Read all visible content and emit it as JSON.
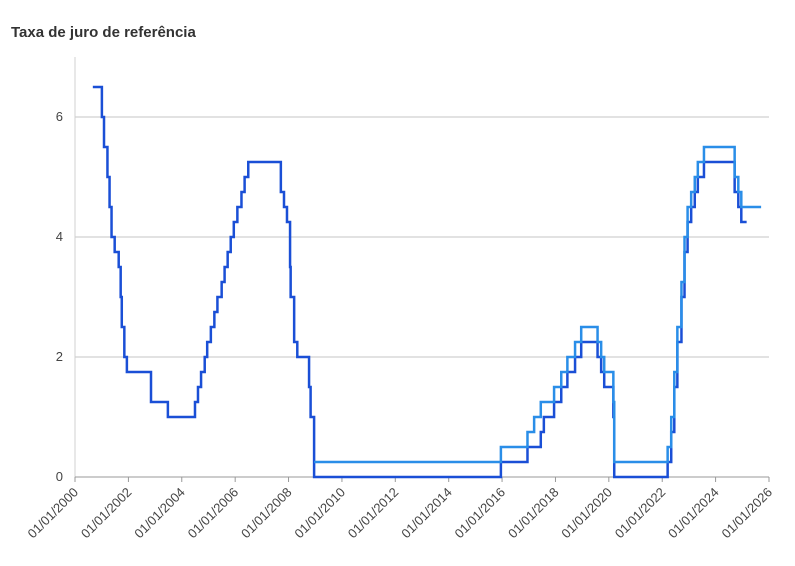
{
  "chart_data": {
    "type": "line",
    "title": "Taxa de juro de referência",
    "xlabel": "",
    "ylabel": "",
    "xlim": [
      "2000-01-01",
      "2026-01-01"
    ],
    "ylim": [
      0,
      7
    ],
    "x_ticks": [
      "01/01/2000",
      "01/01/2002",
      "01/01/2004",
      "01/01/2006",
      "01/01/2008",
      "01/01/2010",
      "01/01/2012",
      "01/01/2014",
      "01/01/2016",
      "01/01/2018",
      "01/01/2020",
      "01/01/2022",
      "01/01/2024",
      "01/01/2026"
    ],
    "y_ticks": [
      0,
      2,
      4,
      6
    ],
    "grid": true,
    "legend": "none",
    "colors": [
      "#1a4fd6",
      "#2a8ee8"
    ],
    "series": [
      {
        "x": [
          "2000-09-01",
          "2001-01-03",
          "2001-02-01",
          "2001-03-20",
          "2001-04-18",
          "2001-05-15",
          "2001-06-27",
          "2001-08-21",
          "2001-09-17",
          "2001-10-02",
          "2001-11-06",
          "2001-12-11",
          "2002-11-06",
          "2003-06-25",
          "2004-06-30",
          "2004-08-10",
          "2004-09-21",
          "2004-11-10",
          "2004-12-14",
          "2005-02-02",
          "2005-03-22",
          "2005-05-03",
          "2005-06-30",
          "2005-08-09",
          "2005-09-20",
          "2005-11-01",
          "2005-12-13",
          "2006-01-31",
          "2006-03-28",
          "2006-05-10",
          "2006-06-29",
          "2007-09-18",
          "2007-10-31",
          "2007-12-11",
          "2008-01-22",
          "2008-01-30",
          "2008-03-18",
          "2008-04-30",
          "2008-10-08",
          "2008-10-29",
          "2008-12-16",
          "2015-12-16",
          "2016-12-14",
          "2017-06-14",
          "2017-07-26",
          "2017-09-20",
          "2017-12-13",
          "2018-03-21",
          "2018-06-13",
          "2018-09-26",
          "2018-12-19",
          "2019-07-31",
          "2019-09-18",
          "2019-10-30",
          "2020-03-03",
          "2020-03-15",
          "2022-03-16",
          "2022-05-04",
          "2022-06-15",
          "2022-07-27",
          "2022-09-21",
          "2022-11-02",
          "2022-12-14",
          "2023-02-01",
          "2023-03-22",
          "2023-05-03",
          "2023-07-26",
          "2024-09-18",
          "2024-11-07",
          "2024-12-18",
          "2025-03-01"
        ],
        "values": [
          6.5,
          6.0,
          5.5,
          5.0,
          4.5,
          4.0,
          3.75,
          3.5,
          3.0,
          2.5,
          2.0,
          1.75,
          1.25,
          1.0,
          1.25,
          1.5,
          1.75,
          2.0,
          2.25,
          2.5,
          2.75,
          3.0,
          3.25,
          3.5,
          3.75,
          4.0,
          4.25,
          4.5,
          4.75,
          5.0,
          5.25,
          4.75,
          4.5,
          4.25,
          3.5,
          3.0,
          2.25,
          2.0,
          1.5,
          1.0,
          0.0,
          0.25,
          0.5,
          0.75,
          1.0,
          1.0,
          1.25,
          1.5,
          1.75,
          2.0,
          2.25,
          2.0,
          1.75,
          1.5,
          1.0,
          0.0,
          0.25,
          0.75,
          1.5,
          2.25,
          3.0,
          3.75,
          4.25,
          4.5,
          4.75,
          5.0,
          5.25,
          4.75,
          4.5,
          4.25,
          4.25
        ]
      },
      {
        "x": [
          "2008-12-16",
          "2015-12-16",
          "2016-12-14",
          "2017-03-15",
          "2017-06-14",
          "2017-12-13",
          "2018-03-21",
          "2018-06-13",
          "2018-09-26",
          "2018-12-19",
          "2019-07-31",
          "2019-09-18",
          "2019-10-30",
          "2020-03-03",
          "2020-03-15",
          "2022-03-16",
          "2022-05-04",
          "2022-06-15",
          "2022-07-27",
          "2022-09-21",
          "2022-11-02",
          "2022-12-14",
          "2023-02-01",
          "2023-03-22",
          "2023-05-03",
          "2023-07-26",
          "2024-09-18",
          "2024-11-07",
          "2024-12-18",
          "2025-09-15"
        ],
        "values": [
          0.25,
          0.5,
          0.75,
          1.0,
          1.25,
          1.5,
          1.75,
          2.0,
          2.25,
          2.5,
          2.25,
          2.0,
          1.75,
          1.25,
          0.25,
          0.5,
          1.0,
          1.75,
          2.5,
          3.25,
          4.0,
          4.5,
          4.75,
          5.0,
          5.25,
          5.5,
          5.0,
          4.75,
          4.5,
          4.5
        ]
      }
    ]
  }
}
